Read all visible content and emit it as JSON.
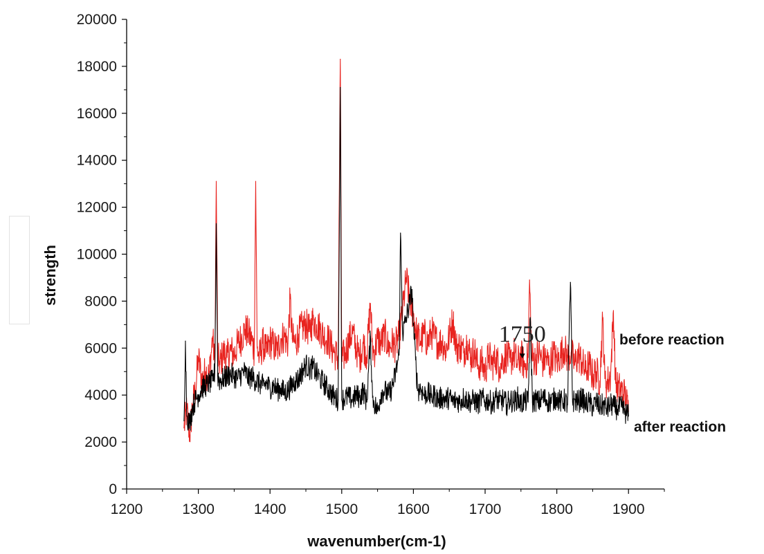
{
  "chart_data": {
    "type": "line",
    "xlabel": "wavenumber(cm-1)",
    "ylabel": "strength",
    "xlim": [
      1200,
      1950
    ],
    "ylim": [
      0,
      20000
    ],
    "x_ticks": [
      1200,
      1300,
      1400,
      1500,
      1600,
      1700,
      1800,
      1900
    ],
    "y_ticks": [
      0,
      2000,
      4000,
      6000,
      8000,
      10000,
      12000,
      14000,
      16000,
      18000,
      20000
    ],
    "x_range_data": [
      1280,
      1900
    ],
    "grid": false,
    "series": [
      {
        "name": "before reaction",
        "color": "#e8231f",
        "points": [
          [
            1280,
            2600
          ],
          [
            1284,
            3400
          ],
          [
            1288,
            2300
          ],
          [
            1292,
            3600
          ],
          [
            1296,
            4200
          ],
          [
            1300,
            5600
          ],
          [
            1305,
            4600
          ],
          [
            1310,
            5000
          ],
          [
            1315,
            4800
          ],
          [
            1320,
            6500
          ],
          [
            1323,
            5200
          ],
          [
            1325,
            13100
          ],
          [
            1327,
            5600
          ],
          [
            1330,
            5300
          ],
          [
            1335,
            5800
          ],
          [
            1340,
            5600
          ],
          [
            1345,
            5900
          ],
          [
            1350,
            5700
          ],
          [
            1355,
            6200
          ],
          [
            1360,
            6400
          ],
          [
            1365,
            6800
          ],
          [
            1370,
            6600
          ],
          [
            1375,
            6300
          ],
          [
            1378,
            5900
          ],
          [
            1380,
            13100
          ],
          [
            1382,
            6000
          ],
          [
            1385,
            5600
          ],
          [
            1390,
            6200
          ],
          [
            1395,
            5800
          ],
          [
            1400,
            6300
          ],
          [
            1405,
            6100
          ],
          [
            1410,
            5900
          ],
          [
            1415,
            6400
          ],
          [
            1420,
            6500
          ],
          [
            1425,
            6200
          ],
          [
            1428,
            8100
          ],
          [
            1431,
            6400
          ],
          [
            1435,
            6200
          ],
          [
            1440,
            6600
          ],
          [
            1445,
            6900
          ],
          [
            1450,
            7000
          ],
          [
            1455,
            6700
          ],
          [
            1460,
            7200
          ],
          [
            1465,
            7000
          ],
          [
            1470,
            6800
          ],
          [
            1475,
            6500
          ],
          [
            1480,
            6400
          ],
          [
            1485,
            6100
          ],
          [
            1490,
            5800
          ],
          [
            1495,
            5600
          ],
          [
            1498,
            18300
          ],
          [
            1500,
            5500
          ],
          [
            1505,
            5800
          ],
          [
            1510,
            6300
          ],
          [
            1515,
            6700
          ],
          [
            1520,
            6000
          ],
          [
            1525,
            5600
          ],
          [
            1530,
            6200
          ],
          [
            1535,
            5700
          ],
          [
            1540,
            7900
          ],
          [
            1543,
            6000
          ],
          [
            1545,
            5800
          ],
          [
            1550,
            6400
          ],
          [
            1555,
            6200
          ],
          [
            1560,
            6600
          ],
          [
            1565,
            6000
          ],
          [
            1570,
            6200
          ],
          [
            1575,
            6100
          ],
          [
            1580,
            6500
          ],
          [
            1585,
            7600
          ],
          [
            1590,
            9000
          ],
          [
            1595,
            8000
          ],
          [
            1600,
            7400
          ],
          [
            1605,
            6500
          ],
          [
            1610,
            6300
          ],
          [
            1615,
            6600
          ],
          [
            1620,
            6200
          ],
          [
            1625,
            6700
          ],
          [
            1630,
            6400
          ],
          [
            1635,
            6200
          ],
          [
            1640,
            6300
          ],
          [
            1645,
            5900
          ],
          [
            1650,
            6500
          ],
          [
            1655,
            7200
          ],
          [
            1660,
            6000
          ],
          [
            1665,
            6100
          ],
          [
            1670,
            5800
          ],
          [
            1675,
            6300
          ],
          [
            1680,
            5600
          ],
          [
            1685,
            5900
          ],
          [
            1690,
            5200
          ],
          [
            1695,
            5400
          ],
          [
            1700,
            5000
          ],
          [
            1705,
            5700
          ],
          [
            1710,
            5300
          ],
          [
            1715,
            5600
          ],
          [
            1720,
            5200
          ],
          [
            1725,
            5500
          ],
          [
            1730,
            5700
          ],
          [
            1735,
            5400
          ],
          [
            1740,
            5800
          ],
          [
            1745,
            5300
          ],
          [
            1750,
            5700
          ],
          [
            1755,
            5200
          ],
          [
            1760,
            5600
          ],
          [
            1762,
            8900
          ],
          [
            1765,
            5600
          ],
          [
            1770,
            5500
          ],
          [
            1775,
            5800
          ],
          [
            1780,
            5400
          ],
          [
            1785,
            5600
          ],
          [
            1790,
            5200
          ],
          [
            1795,
            5800
          ],
          [
            1800,
            5400
          ],
          [
            1805,
            5700
          ],
          [
            1810,
            6000
          ],
          [
            1815,
            5600
          ],
          [
            1820,
            5800
          ],
          [
            1825,
            5300
          ],
          [
            1830,
            5700
          ],
          [
            1835,
            5400
          ],
          [
            1840,
            5000
          ],
          [
            1845,
            5300
          ],
          [
            1850,
            4800
          ],
          [
            1855,
            5000
          ],
          [
            1860,
            4600
          ],
          [
            1864,
            7200
          ],
          [
            1867,
            4700
          ],
          [
            1870,
            4500
          ],
          [
            1875,
            4800
          ],
          [
            1879,
            7600
          ],
          [
            1882,
            4500
          ],
          [
            1885,
            4300
          ],
          [
            1890,
            4200
          ],
          [
            1895,
            4000
          ],
          [
            1900,
            3300
          ]
        ]
      },
      {
        "name": "after  reaction",
        "color": "#000000",
        "points": [
          [
            1280,
            2900
          ],
          [
            1282,
            6300
          ],
          [
            1284,
            3100
          ],
          [
            1288,
            2800
          ],
          [
            1292,
            3500
          ],
          [
            1296,
            3800
          ],
          [
            1300,
            4000
          ],
          [
            1305,
            4300
          ],
          [
            1310,
            4400
          ],
          [
            1315,
            4500
          ],
          [
            1320,
            4600
          ],
          [
            1323,
            5000
          ],
          [
            1325,
            11300
          ],
          [
            1327,
            4800
          ],
          [
            1330,
            4600
          ],
          [
            1335,
            4700
          ],
          [
            1340,
            4800
          ],
          [
            1345,
            4900
          ],
          [
            1350,
            4800
          ],
          [
            1355,
            4700
          ],
          [
            1360,
            4900
          ],
          [
            1365,
            5000
          ],
          [
            1370,
            4700
          ],
          [
            1375,
            4800
          ],
          [
            1380,
            4600
          ],
          [
            1385,
            4500
          ],
          [
            1390,
            4400
          ],
          [
            1395,
            4500
          ],
          [
            1400,
            4300
          ],
          [
            1405,
            4400
          ],
          [
            1410,
            4200
          ],
          [
            1415,
            4300
          ],
          [
            1420,
            4100
          ],
          [
            1425,
            4200
          ],
          [
            1430,
            4400
          ],
          [
            1435,
            4600
          ],
          [
            1440,
            4700
          ],
          [
            1445,
            5000
          ],
          [
            1450,
            5300
          ],
          [
            1455,
            5100
          ],
          [
            1460,
            5200
          ],
          [
            1465,
            4900
          ],
          [
            1470,
            4700
          ],
          [
            1475,
            4500
          ],
          [
            1480,
            4300
          ],
          [
            1485,
            4100
          ],
          [
            1490,
            3900
          ],
          [
            1495,
            3800
          ],
          [
            1498,
            17100
          ],
          [
            1500,
            3800
          ],
          [
            1505,
            3900
          ],
          [
            1510,
            3900
          ],
          [
            1515,
            3800
          ],
          [
            1520,
            4000
          ],
          [
            1525,
            3900
          ],
          [
            1530,
            4200
          ],
          [
            1535,
            3700
          ],
          [
            1540,
            6500
          ],
          [
            1543,
            3900
          ],
          [
            1545,
            3700
          ],
          [
            1550,
            3300
          ],
          [
            1555,
            4100
          ],
          [
            1560,
            4200
          ],
          [
            1565,
            4000
          ],
          [
            1570,
            4300
          ],
          [
            1575,
            4900
          ],
          [
            1580,
            5700
          ],
          [
            1582,
            10900
          ],
          [
            1585,
            6600
          ],
          [
            1590,
            7300
          ],
          [
            1595,
            8000
          ],
          [
            1598,
            8500
          ],
          [
            1600,
            7000
          ],
          [
            1603,
            5500
          ],
          [
            1606,
            4200
          ],
          [
            1610,
            4300
          ],
          [
            1615,
            4000
          ],
          [
            1620,
            4100
          ],
          [
            1625,
            3900
          ],
          [
            1630,
            4000
          ],
          [
            1635,
            3800
          ],
          [
            1640,
            3900
          ],
          [
            1645,
            3800
          ],
          [
            1650,
            3900
          ],
          [
            1655,
            3700
          ],
          [
            1660,
            3800
          ],
          [
            1665,
            3700
          ],
          [
            1670,
            3900
          ],
          [
            1675,
            3800
          ],
          [
            1680,
            3700
          ],
          [
            1685,
            3800
          ],
          [
            1690,
            3600
          ],
          [
            1695,
            3900
          ],
          [
            1700,
            3700
          ],
          [
            1705,
            3800
          ],
          [
            1710,
            3600
          ],
          [
            1715,
            3900
          ],
          [
            1720,
            3700
          ],
          [
            1725,
            3800
          ],
          [
            1730,
            3600
          ],
          [
            1735,
            3800
          ],
          [
            1740,
            3700
          ],
          [
            1745,
            3900
          ],
          [
            1750,
            3600
          ],
          [
            1755,
            3800
          ],
          [
            1760,
            3700
          ],
          [
            1763,
            7300
          ],
          [
            1766,
            3700
          ],
          [
            1770,
            3800
          ],
          [
            1775,
            3700
          ],
          [
            1780,
            3900
          ],
          [
            1785,
            3800
          ],
          [
            1790,
            3700
          ],
          [
            1795,
            3800
          ],
          [
            1800,
            3900
          ],
          [
            1805,
            3700
          ],
          [
            1810,
            3800
          ],
          [
            1815,
            3600
          ],
          [
            1819,
            8800
          ],
          [
            1822,
            3700
          ],
          [
            1825,
            3800
          ],
          [
            1830,
            3700
          ],
          [
            1835,
            3900
          ],
          [
            1840,
            3600
          ],
          [
            1845,
            3700
          ],
          [
            1850,
            3500
          ],
          [
            1855,
            3700
          ],
          [
            1860,
            3500
          ],
          [
            1865,
            3600
          ],
          [
            1870,
            3400
          ],
          [
            1875,
            3600
          ],
          [
            1880,
            3500
          ],
          [
            1885,
            3400
          ],
          [
            1890,
            3500
          ],
          [
            1895,
            3300
          ],
          [
            1900,
            3100
          ]
        ]
      }
    ],
    "annotations": [
      {
        "text": "1750",
        "x": 1750,
        "y": 6150
      }
    ],
    "series_labels": [
      {
        "text": "before reaction",
        "series": 0
      },
      {
        "text": "after  reaction",
        "series": 1
      }
    ]
  }
}
